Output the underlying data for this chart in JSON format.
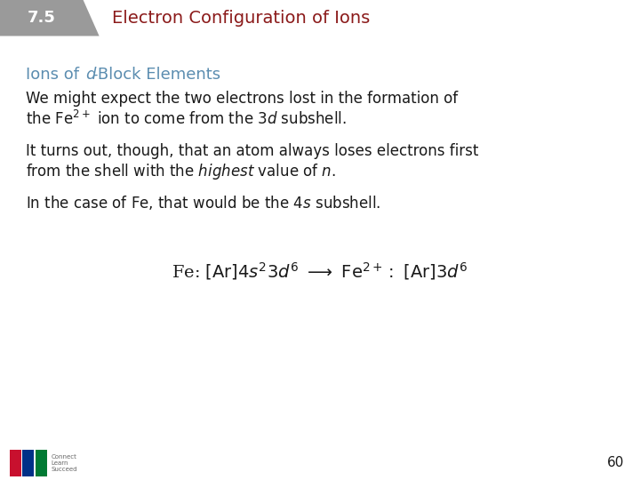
{
  "bg_color": "#ffffff",
  "header_bg": "#9a9a9a",
  "header_number": "7.5",
  "header_number_color": "#ffffff",
  "header_title": "Electron Configuration of Ions",
  "header_title_color": "#8b1a1a",
  "section_heading_color": "#5b8db0",
  "text_color": "#1a1a1a",
  "page_number": "60",
  "font_size_header_num": 13,
  "font_size_header_title": 14,
  "font_size_section": 13,
  "font_size_body": 12,
  "font_size_eq": 14,
  "logo_colors": [
    "#c8102e",
    "#003087",
    "#007a33"
  ]
}
